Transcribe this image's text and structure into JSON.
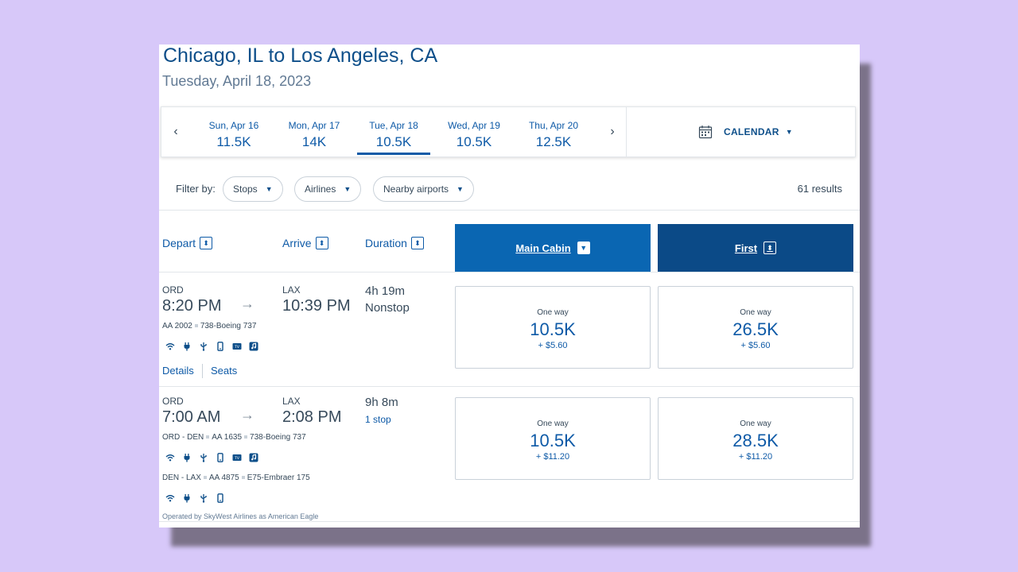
{
  "route": {
    "title": "Chicago, IL to Los Angeles, CA",
    "date": "Tuesday, April 18, 2023"
  },
  "date_strip": {
    "prev": "‹",
    "next": "›",
    "items": [
      {
        "label": "Sun, Apr 16",
        "price": "11.5K"
      },
      {
        "label": "Mon, Apr 17",
        "price": "14K"
      },
      {
        "label": "Tue, Apr 18",
        "price": "10.5K"
      },
      {
        "label": "Wed, Apr 19",
        "price": "10.5K"
      },
      {
        "label": "Thu, Apr 20",
        "price": "12.5K"
      }
    ],
    "selected_index": 2,
    "calendar_label": "CALENDAR"
  },
  "filters": {
    "label": "Filter by:",
    "pills": [
      "Stops",
      "Airlines",
      "Nearby airports"
    ],
    "results": "61 results"
  },
  "columns": {
    "depart": "Depart",
    "arrive": "Arrive",
    "duration": "Duration",
    "main_cabin": "Main Cabin",
    "first": "First"
  },
  "flights": [
    {
      "depart_airport": "ORD",
      "depart_time": "8:20 PM",
      "arrive_airport": "LAX",
      "arrive_time": "10:39 PM",
      "duration": "4h 19m",
      "stops": "Nonstop",
      "segments": [
        {
          "flight": "AA 2002",
          "aircraft": "738-Boeing 737"
        }
      ],
      "links": {
        "details": "Details",
        "seats": "Seats"
      },
      "main_cabin": {
        "label": "One way",
        "miles": "10.5K",
        "tax": "+ $5.60"
      },
      "first": {
        "label": "One way",
        "miles": "26.5K",
        "tax": "+ $5.60"
      }
    },
    {
      "depart_airport": "ORD",
      "depart_time": "7:00 AM",
      "arrive_airport": "LAX",
      "arrive_time": "2:08 PM",
      "duration": "9h 8m",
      "stops": "1 stop",
      "segments": [
        {
          "route": "ORD - DEN",
          "flight": "AA 1635",
          "aircraft": "738-Boeing 737"
        },
        {
          "route": "DEN - LAX",
          "flight": "AA 4875",
          "aircraft": "E75-Embraer 175"
        }
      ],
      "operated_by": "Operated by SkyWest Airlines as American Eagle",
      "main_cabin": {
        "label": "One way",
        "miles": "10.5K",
        "tax": "+ $11.20"
      },
      "first": {
        "label": "One way",
        "miles": "28.5K",
        "tax": "+ $11.20"
      }
    }
  ],
  "amenity_icons": [
    "wifi-icon",
    "power-icon",
    "usb-icon",
    "phone-icon",
    "tv-icon",
    "music-icon"
  ],
  "colors": {
    "background": "#d7c8f9",
    "main_cabin": "#0a66b2",
    "first": "#0b4a87",
    "link": "#0e5aa7"
  }
}
